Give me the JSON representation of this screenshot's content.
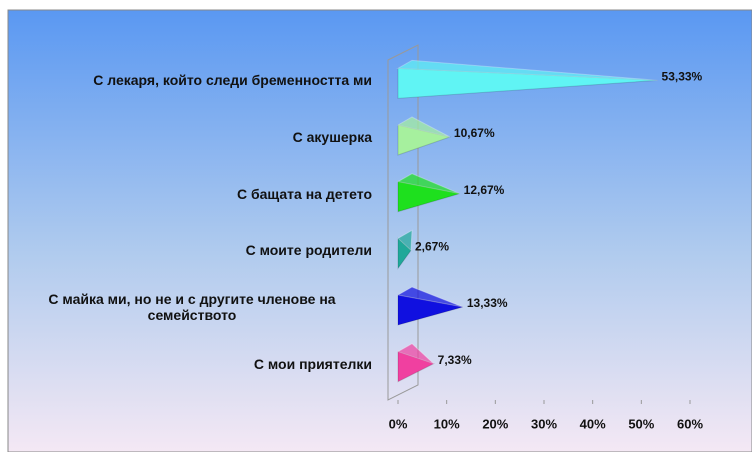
{
  "chart_data": {
    "type": "bar",
    "orientation": "horizontal",
    "categories": [
      "С лекаря, който следи бременността ми",
      "С акушерка",
      "С бащата на детето",
      "С моите родители",
      "С майка ми, но не и с другите членове на семейството",
      "С мои приятелки"
    ],
    "values": [
      53.33,
      10.67,
      12.67,
      2.67,
      13.33,
      7.33
    ],
    "value_labels": [
      "53,33%",
      "10,67%",
      "12,67%",
      "2,67%",
      "13,33%",
      "7,33%"
    ],
    "colors": [
      "#60f4f4",
      "#a6f09e",
      "#1ee01e",
      "#1fa899",
      "#1010e0",
      "#f040a0"
    ],
    "xlim": [
      0,
      60
    ],
    "xticks": [
      {
        "value": 0,
        "label": "0%"
      },
      {
        "value": 10,
        "label": "10%"
      },
      {
        "value": 20,
        "label": "20%"
      },
      {
        "value": 30,
        "label": "30%"
      },
      {
        "value": 40,
        "label": "40%"
      },
      {
        "value": 50,
        "label": "50%"
      },
      {
        "value": 60,
        "label": "60%"
      }
    ]
  }
}
